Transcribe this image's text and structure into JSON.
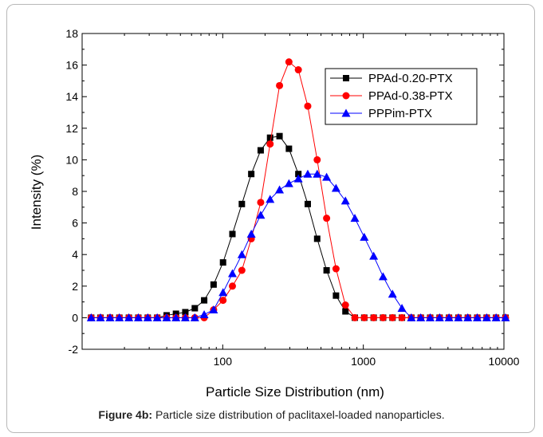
{
  "chart_data": {
    "type": "line",
    "xscale": "log",
    "xlim": [
      10,
      10000
    ],
    "ylim": [
      -2,
      18
    ],
    "xlabel": "Particle Size Distribution (nm)",
    "ylabel": "Intensity (%)",
    "xticks": [
      100,
      1000,
      10000
    ],
    "xtick_labels": [
      "100",
      "1000",
      "10000"
    ],
    "yticks": [
      -2,
      0,
      2,
      4,
      6,
      8,
      10,
      12,
      14,
      16,
      18
    ],
    "legend_position": "top-right",
    "grid": false,
    "series": [
      {
        "name": "PPAd-0.20-PTX",
        "color": "#000000",
        "marker": "square",
        "points": [
          [
            11.6,
            0
          ],
          [
            13.5,
            0
          ],
          [
            15.8,
            0
          ],
          [
            18.4,
            0
          ],
          [
            21.5,
            0
          ],
          [
            25.1,
            0
          ],
          [
            29.3,
            0
          ],
          [
            34.2,
            0
          ],
          [
            39.9,
            0.15
          ],
          [
            46.5,
            0.25
          ],
          [
            54.2,
            0.35
          ],
          [
            63.3,
            0.6
          ],
          [
            73.8,
            1.1
          ],
          [
            86.1,
            2.1
          ],
          [
            100.5,
            3.5
          ],
          [
            117.2,
            5.3
          ],
          [
            136.8,
            7.2
          ],
          [
            159.6,
            9.1
          ],
          [
            186.2,
            10.6
          ],
          [
            217.2,
            11.4
          ],
          [
            253.5,
            11.5
          ],
          [
            295.7,
            10.7
          ],
          [
            345.0,
            9.1
          ],
          [
            402.5,
            7.2
          ],
          [
            469.7,
            5.0
          ],
          [
            548.0,
            3.0
          ],
          [
            639.3,
            1.4
          ],
          [
            746.0,
            0.4
          ],
          [
            870.3,
            0
          ],
          [
            1015.4,
            0
          ],
          [
            1184.7,
            0
          ],
          [
            1382.2,
            0
          ],
          [
            1612.6,
            0
          ],
          [
            1881.5,
            0
          ],
          [
            2195.2,
            0
          ],
          [
            2561.2,
            0
          ],
          [
            2988.2,
            0
          ],
          [
            3486.4,
            0
          ],
          [
            4067.6,
            0
          ],
          [
            4745.8,
            0
          ],
          [
            5537.0,
            0
          ],
          [
            6460.2,
            0
          ],
          [
            7537.2,
            0
          ],
          [
            8793.8,
            0
          ],
          [
            10259.9,
            0
          ]
        ]
      },
      {
        "name": "PPAd-0.38-PTX",
        "color": "#ff0000",
        "marker": "circle",
        "points": [
          [
            11.6,
            0
          ],
          [
            13.5,
            0
          ],
          [
            15.8,
            0
          ],
          [
            18.4,
            0
          ],
          [
            21.5,
            0
          ],
          [
            25.1,
            0
          ],
          [
            29.3,
            0
          ],
          [
            34.2,
            0
          ],
          [
            39.9,
            0
          ],
          [
            46.5,
            0
          ],
          [
            54.2,
            0
          ],
          [
            63.3,
            0
          ],
          [
            73.8,
            0
          ],
          [
            86.1,
            0.5
          ],
          [
            100.5,
            1.1
          ],
          [
            117.2,
            2.0
          ],
          [
            136.8,
            3.0
          ],
          [
            159.6,
            5.0
          ],
          [
            186.2,
            7.3
          ],
          [
            217.2,
            11.0
          ],
          [
            253.5,
            14.7
          ],
          [
            295.7,
            16.2
          ],
          [
            345.0,
            15.7
          ],
          [
            402.5,
            13.4
          ],
          [
            469.7,
            10.0
          ],
          [
            548.0,
            6.3
          ],
          [
            639.3,
            3.1
          ],
          [
            746.0,
            0.8
          ],
          [
            870.3,
            0
          ],
          [
            1015.4,
            0
          ],
          [
            1184.7,
            0
          ],
          [
            1382.2,
            0
          ],
          [
            1612.6,
            0
          ],
          [
            1881.5,
            0
          ],
          [
            2195.2,
            0
          ],
          [
            2561.2,
            0
          ],
          [
            2988.2,
            0
          ],
          [
            3486.4,
            0
          ],
          [
            4067.6,
            0
          ],
          [
            4745.8,
            0
          ],
          [
            5537.0,
            0
          ],
          [
            6460.2,
            0
          ],
          [
            7537.2,
            0
          ],
          [
            8793.8,
            0
          ],
          [
            10259.9,
            0
          ]
        ]
      },
      {
        "name": "PPPim-PTX",
        "color": "#0000ff",
        "marker": "triangle",
        "points": [
          [
            11.6,
            0
          ],
          [
            13.5,
            0
          ],
          [
            15.8,
            0
          ],
          [
            18.4,
            0
          ],
          [
            21.5,
            0
          ],
          [
            25.1,
            0
          ],
          [
            29.3,
            0
          ],
          [
            34.2,
            0
          ],
          [
            39.9,
            0
          ],
          [
            46.5,
            0
          ],
          [
            54.2,
            0
          ],
          [
            63.3,
            0
          ],
          [
            73.8,
            0.2
          ],
          [
            86.1,
            0.5
          ],
          [
            100.5,
            1.6
          ],
          [
            117.2,
            2.8
          ],
          [
            136.8,
            4.0
          ],
          [
            159.6,
            5.3
          ],
          [
            186.2,
            6.5
          ],
          [
            217.2,
            7.5
          ],
          [
            253.5,
            8.1
          ],
          [
            295.7,
            8.5
          ],
          [
            345.0,
            8.8
          ],
          [
            402.5,
            9.1
          ],
          [
            469.7,
            9.1
          ],
          [
            548.0,
            8.9
          ],
          [
            639.3,
            8.2
          ],
          [
            746.0,
            7.4
          ],
          [
            870.3,
            6.3
          ],
          [
            1015.4,
            5.1
          ],
          [
            1184.7,
            3.9
          ],
          [
            1382.2,
            2.6
          ],
          [
            1612.6,
            1.5
          ],
          [
            1881.5,
            0.6
          ],
          [
            2195.2,
            0
          ],
          [
            2561.2,
            0
          ],
          [
            2988.2,
            0
          ],
          [
            3486.4,
            0
          ],
          [
            4067.6,
            0
          ],
          [
            4745.8,
            0
          ],
          [
            5537.0,
            0
          ],
          [
            6460.2,
            0
          ],
          [
            7537.2,
            0
          ],
          [
            8793.8,
            0
          ],
          [
            10259.9,
            0
          ]
        ]
      }
    ]
  },
  "caption": {
    "label": "Figure 4b:",
    "text": " Particle size distribution of paclitaxel-loaded nanoparticles."
  }
}
